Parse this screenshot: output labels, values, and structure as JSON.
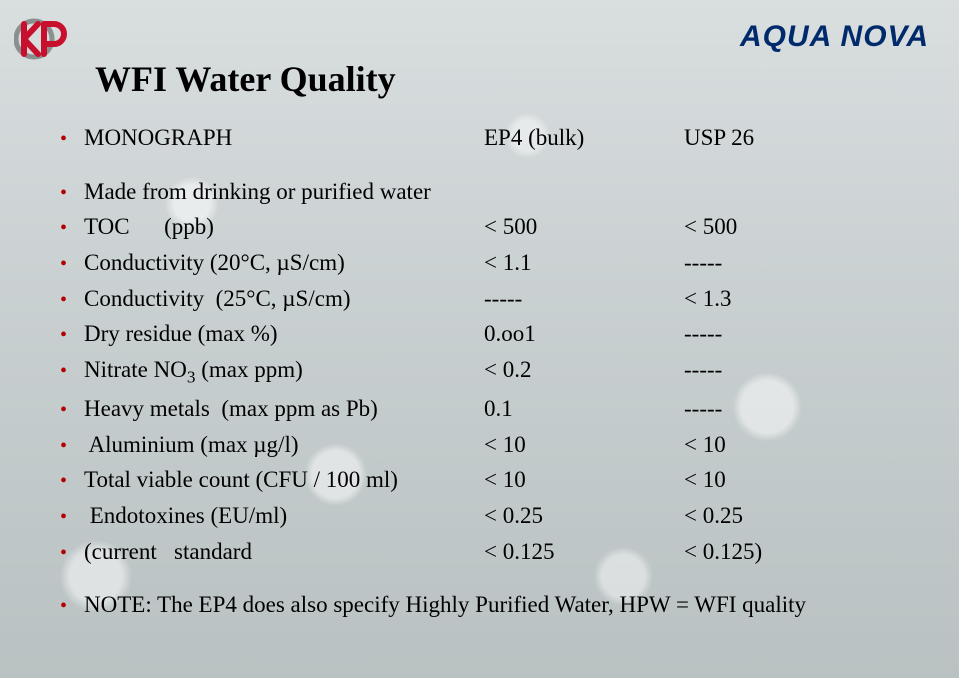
{
  "brand": "AQUA NOVA",
  "title": "WFI Water Quality",
  "colors": {
    "brand_color": "#002a6b",
    "bullet_color": "#b30000",
    "text_color": "#000000",
    "logo_red": "#c8102e",
    "logo_grey": "#8a8f90"
  },
  "header": {
    "c1": "MONOGRAPH",
    "c2": "EP4 (bulk)",
    "c3": "USP 26"
  },
  "rows": [
    {
      "c1": "Made from drinking or purified water",
      "c2": "",
      "c3": ""
    },
    {
      "c1": "TOC      (ppb)",
      "c2": "< 500",
      "c3": "< 500"
    },
    {
      "c1": "Conductivity (20°C, µS/cm)",
      "c2": "< 1.1",
      "c3": "-----"
    },
    {
      "c1": "Conductivity  (25°C, µS/cm)",
      "c2": "-----",
      "c3": "< 1.3"
    },
    {
      "c1": "Dry residue (max %)",
      "c2": "0.oo1",
      "c3": "-----"
    },
    {
      "c1_html": "Nitrate NO<sub>3</sub> (max ppm)",
      "c2": "<  0.2",
      "c3": "-----"
    },
    {
      "c1": "Heavy metals  (max ppm as Pb)",
      "c2": "0.1",
      "c3": "-----"
    },
    {
      "c1": " Aluminium (max µg/l)",
      "c2": "<  10",
      "c3": "<  10"
    },
    {
      "c1": "Total viable count (CFU / 100 ml)",
      "c2": "<  10",
      "c3": "<  10"
    },
    {
      "c1": " Endotoxines (EU/ml)",
      "c2": "< 0.25",
      "c3": "< 0.25"
    },
    {
      "c1": "(current   standard",
      "c2": "< 0.125",
      "c3": "< 0.125)"
    }
  ],
  "note": "NOTE:  The EP4 does also specify Highly Purified Water, HPW = WFI quality"
}
